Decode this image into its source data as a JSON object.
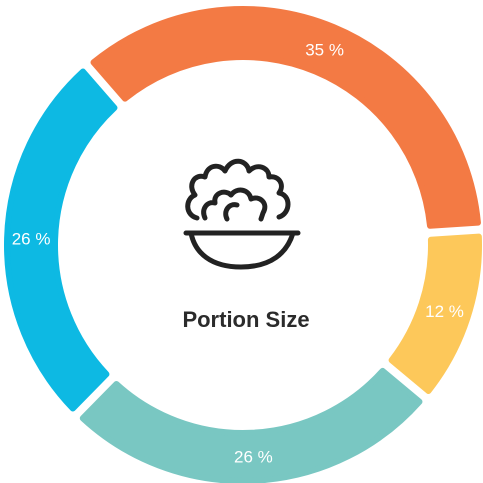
{
  "chart_data": {
    "type": "pie",
    "title": "Portion Size",
    "center_icon": "salad-bowl-icon",
    "slices": [
      {
        "value": 35,
        "label": "35 %",
        "color": "#F37A44"
      },
      {
        "value": 12,
        "label": "12 %",
        "color": "#FDC85A"
      },
      {
        "value": 26,
        "label": "26 %",
        "color": "#79C7C2"
      },
      {
        "value": 26,
        "label": "26 %",
        "color": "#0DB9E3"
      }
    ]
  }
}
